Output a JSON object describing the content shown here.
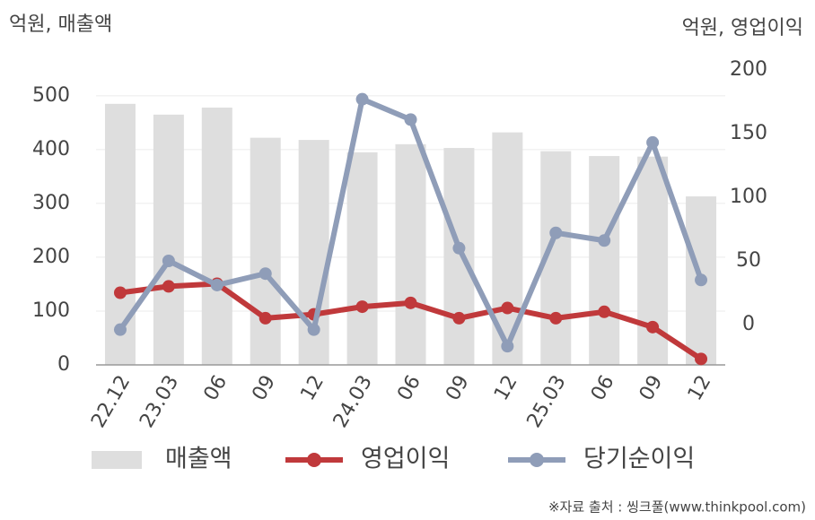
{
  "chart_data": {
    "type": "combo",
    "y_label": "억원, 매출액",
    "y2_label": "억원, 영업이익",
    "source": "※자료 출처 : 씽크풀(www.thinkpool.com)",
    "categories": [
      "22.12",
      "23.03",
      "06",
      "09",
      "12",
      "24.03",
      "06",
      "09",
      "12",
      "25.03",
      "06",
      "09",
      "12"
    ],
    "series": [
      {
        "name": "매출액",
        "type": "bar",
        "axis": "y",
        "color": "#dedede",
        "values": [
          485,
          465,
          478,
          422,
          418,
          395,
          410,
          403,
          432,
          397,
          388,
          387,
          313
        ]
      },
      {
        "name": "영업이익",
        "type": "line",
        "axis": "y2",
        "color": "#c0393b",
        "values": [
          25,
          30,
          32,
          5,
          8,
          14,
          17,
          5,
          13,
          5,
          10,
          -2,
          -27
        ]
      },
      {
        "name": "당기순이익",
        "type": "line",
        "axis": "y2",
        "color": "#8f9db8",
        "values": [
          -4,
          50,
          31,
          40,
          -4,
          177,
          161,
          60,
          -17,
          72,
          66,
          143,
          35
        ]
      }
    ],
    "ylim": [
      0,
      548
    ],
    "yticks": [
      0,
      100,
      200,
      300,
      400,
      500
    ],
    "y2lim": [
      -31.7,
      200
    ],
    "y2ticks": [
      0,
      50,
      100,
      150,
      200
    ],
    "grid": true
  }
}
